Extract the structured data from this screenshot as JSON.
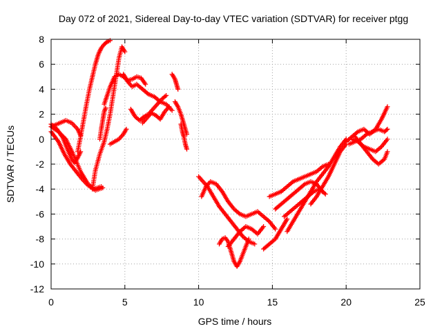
{
  "chart_data": {
    "type": "scatter",
    "title": "Day 072 of 2021, Sidereal Day-to-day VTEC variation (SDTVAR) for receiver ptgg",
    "xlabel": "GPS time / hours",
    "ylabel": "SDTVAR / TECUs",
    "xlim": [
      0,
      25
    ],
    "ylim": [
      -12,
      8
    ],
    "xticks": [
      "0",
      "5",
      "10",
      "15",
      "20",
      "25"
    ],
    "yticks": [
      "-12",
      "-10",
      "-8",
      "-6",
      "-4",
      "-2",
      "0",
      "2",
      "4",
      "6",
      "8"
    ],
    "grid": true,
    "marker": "+",
    "color": "#ff0000",
    "series": [
      {
        "x": [
          0.0,
          0.5,
          1.0,
          1.5,
          2.0,
          2.5,
          3.0,
          3.5
        ],
        "y": [
          1.0,
          0.6,
          0.0,
          -1.2,
          -2.6,
          -3.6,
          -4.1,
          -3.9
        ]
      },
      {
        "x": [
          0.0,
          0.5,
          0.9,
          1.3,
          1.7,
          2.1,
          2.5,
          2.9,
          3.4
        ],
        "y": [
          0.6,
          -0.2,
          -1.2,
          -2.0,
          -2.6,
          -3.2,
          -3.7,
          -4.0,
          -3.8
        ]
      },
      {
        "x": [
          0.0,
          0.4,
          0.8,
          1.1,
          1.4,
          1.6,
          1.8,
          2.0
        ],
        "y": [
          1.2,
          0.8,
          0.1,
          -0.8,
          -1.6,
          -1.9,
          -1.5,
          -1.0
        ]
      },
      {
        "x": [
          0.2,
          0.6,
          1.0,
          1.4,
          1.8,
          2.0
        ],
        "y": [
          1.1,
          1.3,
          1.5,
          1.3,
          0.8,
          0.3
        ]
      },
      {
        "x": [
          1.8,
          2.0,
          2.2,
          2.4,
          2.6,
          2.8,
          3.0,
          3.2,
          3.4,
          3.6,
          3.8,
          4.0
        ],
        "y": [
          -1.0,
          0.2,
          1.5,
          2.8,
          4.0,
          5.0,
          6.0,
          6.8,
          7.3,
          7.6,
          7.8,
          7.9
        ]
      },
      {
        "x": [
          2.8,
          3.0,
          3.3,
          3.6,
          3.8,
          4.0,
          4.2,
          4.4,
          4.6,
          4.8,
          5.0
        ],
        "y": [
          -4.0,
          -2.5,
          -1.2,
          -0.2,
          0.8,
          2.0,
          3.5,
          5.0,
          6.5,
          7.4,
          7.0
        ]
      },
      {
        "x": [
          3.3,
          3.4,
          3.5,
          3.6,
          3.7
        ],
        "y": [
          0.0,
          0.8,
          1.5,
          2.2,
          2.5
        ]
      },
      {
        "x": [
          4.0,
          4.3,
          4.6,
          4.9,
          5.1
        ],
        "y": [
          -0.4,
          -0.2,
          0.0,
          0.4,
          0.8
        ]
      },
      {
        "x": [
          3.6,
          3.8,
          4.0,
          4.3,
          4.6,
          4.9,
          5.2,
          5.5,
          5.8,
          6.1,
          6.4
        ],
        "y": [
          2.8,
          3.5,
          4.2,
          5.0,
          5.2,
          5.0,
          4.7,
          4.8,
          5.0,
          4.9,
          4.4
        ]
      },
      {
        "x": [
          4.9,
          5.2,
          5.5,
          5.8,
          6.2,
          6.6,
          7.0,
          7.4,
          7.8,
          8.2
        ],
        "y": [
          5.2,
          4.6,
          4.2,
          4.4,
          4.0,
          3.6,
          3.4,
          3.0,
          2.8,
          2.3
        ]
      },
      {
        "x": [
          5.4,
          5.7,
          6.0,
          6.3,
          6.6,
          6.9,
          7.2,
          7.5,
          7.8
        ],
        "y": [
          2.4,
          1.8,
          1.5,
          1.8,
          2.0,
          2.4,
          2.8,
          3.2,
          3.5
        ]
      },
      {
        "x": [
          6.2,
          6.5,
          6.8,
          7.1,
          7.4,
          7.7,
          8.0
        ],
        "y": [
          1.3,
          1.7,
          2.1,
          1.9,
          1.6,
          2.2,
          2.6
        ]
      },
      {
        "x": [
          8.2,
          8.4,
          8.5,
          8.6
        ],
        "y": [
          5.2,
          4.8,
          4.4,
          4.0
        ]
      },
      {
        "x": [
          8.4,
          8.6,
          8.8,
          9.0,
          9.2
        ],
        "y": [
          3.0,
          2.6,
          2.0,
          1.2,
          0.4
        ]
      },
      {
        "x": [
          8.8,
          8.9,
          9.0,
          9.1,
          9.2
        ],
        "y": [
          1.2,
          0.6,
          0.2,
          -0.4,
          -0.8
        ]
      },
      {
        "x": [
          10.0,
          10.3,
          10.6,
          11.0,
          11.4,
          11.8,
          12.2,
          12.6,
          13.0,
          13.4,
          13.8
        ],
        "y": [
          -3.0,
          -3.4,
          -3.8,
          -4.6,
          -5.4,
          -6.0,
          -6.6,
          -7.2,
          -7.8,
          -8.2,
          -8.4
        ]
      },
      {
        "x": [
          10.2,
          10.5,
          10.8,
          11.2,
          11.6,
          12.0,
          12.4,
          12.8,
          13.2,
          13.6,
          14.0,
          14.4,
          14.8,
          15.2
        ],
        "y": [
          -4.6,
          -3.8,
          -3.4,
          -3.6,
          -4.2,
          -5.0,
          -5.6,
          -6.0,
          -6.2,
          -6.0,
          -5.8,
          -6.2,
          -6.6,
          -7.2
        ]
      },
      {
        "x": [
          11.4,
          11.6,
          11.8,
          12.0,
          12.2,
          12.4,
          12.6,
          12.8,
          13.0,
          13.2,
          13.4
        ],
        "y": [
          -8.4,
          -8.0,
          -7.9,
          -8.2,
          -9.0,
          -9.8,
          -10.2,
          -9.8,
          -9.2,
          -8.6,
          -8.0
        ]
      },
      {
        "x": [
          12.0,
          12.4,
          12.8,
          13.2,
          13.6,
          14.0,
          14.4
        ],
        "y": [
          -8.6,
          -8.0,
          -7.4,
          -7.0,
          -7.2,
          -7.6,
          -7.0
        ]
      },
      {
        "x": [
          14.4,
          14.8,
          15.2,
          15.4,
          15.6,
          15.8,
          16.0
        ],
        "y": [
          -8.8,
          -8.4,
          -8.0,
          -7.6,
          -7.2,
          -6.8,
          -6.4
        ]
      },
      {
        "x": [
          14.8,
          15.2,
          15.6,
          16.0,
          16.4,
          16.8,
          17.2,
          17.6,
          18.0,
          18.4,
          18.8
        ],
        "y": [
          -4.6,
          -4.4,
          -4.2,
          -3.8,
          -3.4,
          -3.2,
          -3.0,
          -2.8,
          -2.6,
          -2.2,
          -2.0
        ]
      },
      {
        "x": [
          15.2,
          15.6,
          16.0,
          16.4,
          16.8,
          17.2,
          17.6,
          18.0,
          18.4
        ],
        "y": [
          -5.6,
          -5.2,
          -4.8,
          -4.4,
          -4.0,
          -3.6,
          -3.4,
          -3.6,
          -4.2
        ]
      },
      {
        "x": [
          15.8,
          16.2,
          16.6,
          17.0,
          17.4,
          17.8,
          18.2,
          18.6
        ],
        "y": [
          -6.2,
          -5.8,
          -5.4,
          -5.0,
          -4.6,
          -4.2,
          -4.0,
          -4.4
        ]
      },
      {
        "x": [
          16.0,
          16.4,
          16.8,
          17.2,
          17.6,
          18.0,
          18.4,
          18.8,
          19.2,
          19.6,
          20.0
        ],
        "y": [
          -7.4,
          -6.6,
          -5.8,
          -5.0,
          -4.2,
          -3.4,
          -2.8,
          -2.2,
          -1.4,
          -0.6,
          0.0
        ]
      },
      {
        "x": [
          17.6,
          18.0,
          18.4,
          18.8,
          19.2,
          19.6,
          20.0
        ],
        "y": [
          -5.2,
          -4.6,
          -3.8,
          -3.0,
          -2.0,
          -1.0,
          -0.4
        ]
      },
      {
        "x": [
          20.0,
          20.4,
          20.8,
          21.2,
          21.6,
          22.0,
          22.4,
          22.8
        ],
        "y": [
          -0.2,
          0.2,
          0.6,
          0.8,
          0.4,
          0.8,
          1.6,
          2.6
        ]
      },
      {
        "x": [
          20.2,
          20.6,
          21.0,
          21.4,
          21.8,
          22.2,
          22.6,
          22.8
        ],
        "y": [
          -0.4,
          -0.2,
          0.0,
          0.4,
          0.6,
          0.8,
          0.6,
          0.8
        ]
      },
      {
        "x": [
          20.4,
          20.8,
          21.2,
          21.6,
          22.0,
          22.4,
          22.8
        ],
        "y": [
          0.0,
          -0.2,
          -0.6,
          -0.8,
          -1.0,
          -0.6,
          0.0
        ]
      },
      {
        "x": [
          20.6,
          21.0,
          21.4,
          21.8,
          22.2,
          22.6,
          22.8
        ],
        "y": [
          0.2,
          -0.4,
          -1.0,
          -1.6,
          -2.0,
          -1.6,
          -1.0
        ]
      }
    ]
  }
}
